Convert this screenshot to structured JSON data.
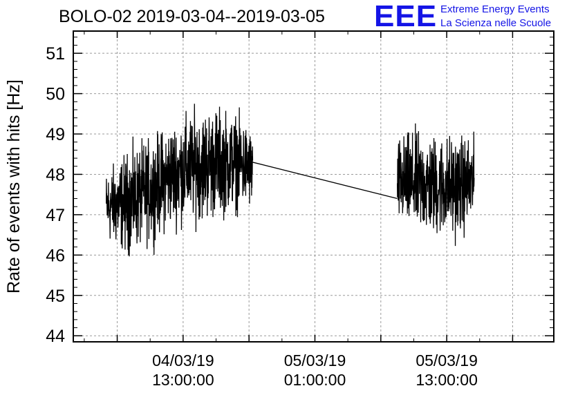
{
  "header": {
    "title": "BOLO-02 2019-03-04--2019-03-05",
    "logo_mark": "EEE",
    "logo_line1": "Extreme Energy Events",
    "logo_line2": "La Scienza nelle Scuole"
  },
  "chart_data": {
    "type": "line",
    "title": "BOLO-02 2019-03-04--2019-03-05",
    "xlabel": "",
    "ylabel": "Rate of events with hits [Hz]",
    "ylim": [
      43.85,
      51.55
    ],
    "xlim": [
      "2019-03-04 03:00:00",
      "2019-03-05 22:45:00"
    ],
    "grid": true,
    "y_ticks": [
      44,
      45,
      46,
      47,
      48,
      49,
      50,
      51
    ],
    "x_ticks": [
      {
        "date": "04/03/19",
        "time": "13:00:00",
        "x": "2019-03-04 13:00:00"
      },
      {
        "date": "05/03/19",
        "time": "01:00:00",
        "x": "2019-03-05 01:00:00"
      },
      {
        "date": "05/03/19",
        "time": "13:00:00",
        "x": "2019-03-05 13:00:00"
      }
    ],
    "series": [
      {
        "color": "#000000",
        "segments": [
          {
            "start": "2019-03-04 06:00:00",
            "end": "2019-03-04 19:20:00",
            "envelope": [
              {
                "x": "2019-03-04 06:00:00",
                "mean": 47.2,
                "spread": 0.9
              },
              {
                "x": "2019-03-04 08:00:00",
                "mean": 47.3,
                "spread": 1.3
              },
              {
                "x": "2019-03-04 10:00:00",
                "mean": 47.6,
                "spread": 1.3
              },
              {
                "x": "2019-03-04 12:00:00",
                "mean": 48.0,
                "spread": 1.3
              },
              {
                "x": "2019-03-04 14:00:00",
                "mean": 48.2,
                "spread": 1.4
              },
              {
                "x": "2019-03-04 16:00:00",
                "mean": 48.3,
                "spread": 1.4
              },
              {
                "x": "2019-03-04 18:00:00",
                "mean": 48.3,
                "spread": 1.2
              },
              {
                "x": "2019-03-04 19:20:00",
                "mean": 48.1,
                "spread": 1.0
              }
            ]
          },
          {
            "start": "2019-03-05 08:30:00",
            "end": "2019-03-05 15:30:00",
            "envelope": [
              {
                "x": "2019-03-05 08:30:00",
                "mean": 47.8,
                "spread": 1.1
              },
              {
                "x": "2019-03-05 10:00:00",
                "mean": 47.8,
                "spread": 1.3
              },
              {
                "x": "2019-03-05 12:00:00",
                "mean": 47.7,
                "spread": 1.3
              },
              {
                "x": "2019-03-05 14:00:00",
                "mean": 47.7,
                "spread": 1.3
              },
              {
                "x": "2019-03-05 15:30:00",
                "mean": 47.8,
                "spread": 1.1
              }
            ]
          }
        ],
        "bridge": [
          {
            "x": "2019-03-04 19:20:00",
            "y": 48.3
          },
          {
            "x": "2019-03-05 08:30:00",
            "y": 47.4
          }
        ]
      }
    ]
  }
}
